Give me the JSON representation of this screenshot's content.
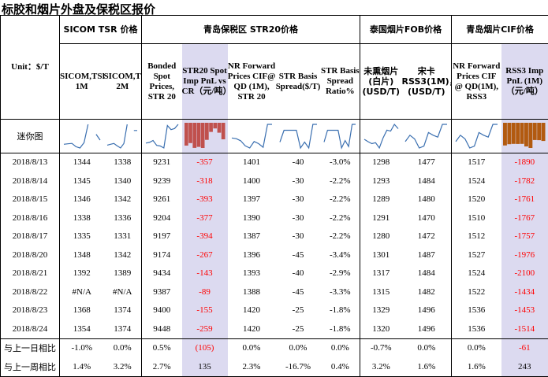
{
  "title": "标胶和烟片外盘及保税区报价",
  "groups": {
    "sicom": "SICOM TSR 价格",
    "qingdao_str20": "青岛保税区 STR20价格",
    "thai_fob": "泰国烟片FOB价格",
    "qingdao_cif": "青岛烟片CIF价格"
  },
  "unit_label": "Unit：$/T",
  "sparkline_label": "迷你图",
  "columns": [
    "SICOM,TSR, 1M",
    "SICOM,TSR, 2M",
    "Bonded Spot Prices, STR 20",
    "STR20 Spot Imp PnL vs CR（元/吨）",
    "NR Forward Prices CIF@ QD (1M), STR 20",
    "STR Basis Spread($/T)",
    "STR Basis Spread Ratio%",
    "未熏烟片(白片)(USD/T)",
    "宋卡RSS3(1M)，(USD/T)",
    "NR Forward Prices CIF @ QD(1M), RSS3",
    "RSS3 Imp PnL (1M)（元/吨）"
  ],
  "rows": [
    {
      "date": "2018/8/13",
      "v": [
        "1344",
        "1338",
        "9231",
        "-357",
        "1401",
        "-40",
        "-3.0%",
        "1298",
        "1477",
        "1517",
        "-1890"
      ]
    },
    {
      "date": "2018/8/14",
      "v": [
        "1345",
        "1340",
        "9239",
        "-318",
        "1400",
        "-30",
        "-2.2%",
        "1293",
        "1484",
        "1524",
        "-1782"
      ]
    },
    {
      "date": "2018/8/15",
      "v": [
        "1346",
        "1342",
        "9261",
        "-393",
        "1397",
        "-30",
        "-2.2%",
        "1289",
        "1480",
        "1520",
        "-1761"
      ]
    },
    {
      "date": "2018/8/16",
      "v": [
        "1338",
        "1336",
        "9204",
        "-377",
        "1390",
        "-30",
        "-2.2%",
        "1291",
        "1470",
        "1510",
        "-1767"
      ]
    },
    {
      "date": "2018/8/17",
      "v": [
        "1335",
        "1331",
        "9197",
        "-394",
        "1387",
        "-30",
        "-2.2%",
        "1280",
        "1472",
        "1512",
        "-1757"
      ]
    },
    {
      "date": "2018/8/20",
      "v": [
        "1348",
        "1342",
        "9174",
        "-267",
        "1396",
        "-45",
        "-3.4%",
        "1301",
        "1487",
        "1527",
        "-1976"
      ]
    },
    {
      "date": "2018/8/21",
      "v": [
        "1392",
        "1389",
        "9434",
        "-143",
        "1393",
        "-40",
        "-2.9%",
        "1317",
        "1484",
        "1524",
        "-2100"
      ]
    },
    {
      "date": "2018/8/22",
      "v": [
        "#N/A",
        "#N/A",
        "9387",
        "-89",
        "1388",
        "-45",
        "-3.3%",
        "1315",
        "1482",
        "1522",
        "-1434"
      ]
    },
    {
      "date": "2018/8/23",
      "v": [
        "1368",
        "1374",
        "9400",
        "-155",
        "1420",
        "-25",
        "-1.8%",
        "1329",
        "1496",
        "1536",
        "-1453"
      ]
    },
    {
      "date": "2018/8/24",
      "v": [
        "1354",
        "1374",
        "9448",
        "-259",
        "1420",
        "-25",
        "-1.8%",
        "1320",
        "1496",
        "1536",
        "-1514"
      ]
    }
  ],
  "summary": [
    {
      "label": "与上一日相比",
      "v": [
        "-1.0%",
        "0.0%",
        "0.5%",
        "(105)",
        "0.0%",
        "0.0%",
        "0.0%",
        "-0.7%",
        "0.0%",
        "0.0%",
        "-61"
      ]
    },
    {
      "label": "与上一周相比",
      "v": [
        "1.4%",
        "3.2%",
        "2.7%",
        "135",
        "2.3%",
        "-16.7%",
        "0.4%",
        "3.2%",
        "1.6%",
        "1.6%",
        "243"
      ]
    }
  ],
  "colors": {
    "highlight_bg": "#dcdaf0",
    "negative_text": "#ff0000",
    "spark_line": "#3a6fb0",
    "spark_bar_str20": "#c0504d",
    "spark_bar_rss3": "#b25a10"
  }
}
